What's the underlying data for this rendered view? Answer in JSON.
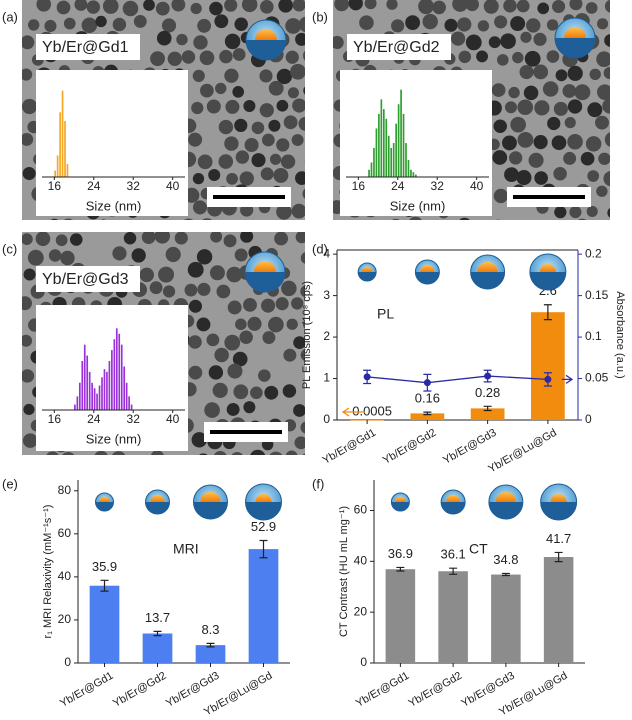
{
  "chart_data": [
    {
      "type": "histogram",
      "panel_label": "(a)",
      "sample_label": "Yb/Er@Gd1",
      "x_label": "Size (nm)",
      "color": "#f5a623",
      "bins": [
        16,
        16.5,
        17,
        17.5,
        18,
        18.5,
        19
      ],
      "counts": [
        3,
        10,
        30,
        40,
        26,
        6
      ],
      "xlim": [
        13.5,
        42.5
      ],
      "xticks": [
        16,
        24,
        32,
        40
      ],
      "ylim": [
        0,
        45
      ]
    },
    {
      "type": "histogram",
      "panel_label": "(b)",
      "sample_label": "Yb/Er@Gd2",
      "x_label": "Size (nm)",
      "color": "#2e9e2e",
      "bins": [
        18,
        18.5,
        19,
        19.5,
        20,
        20.5,
        21,
        21.5,
        22,
        22.5,
        23,
        23.5,
        24,
        24.5,
        25,
        25.5,
        26,
        26.5,
        27,
        27.5,
        28
      ],
      "counts": [
        3,
        6,
        12,
        20,
        26,
        32,
        28,
        24,
        17,
        12,
        14,
        22,
        30,
        36,
        26,
        14,
        7,
        3,
        2,
        1
      ],
      "xlim": [
        13.5,
        42.5
      ],
      "xticks": [
        16,
        24,
        32,
        40
      ],
      "ylim": [
        0,
        40
      ]
    },
    {
      "type": "histogram",
      "panel_label": "(c)",
      "sample_label": "Yb/Er@Gd3",
      "x_label": "Size (nm)",
      "color": "#9b30d9",
      "bins": [
        20,
        20.5,
        21,
        21.5,
        22,
        22.5,
        23,
        23.5,
        24,
        24.5,
        25,
        25.5,
        26,
        26.5,
        27,
        27.5,
        28,
        28.5,
        29,
        29.5,
        30,
        30.5,
        31,
        31.5,
        32
      ],
      "counts": [
        2,
        5,
        10,
        18,
        24,
        20,
        14,
        10,
        8,
        6,
        9,
        12,
        15,
        14,
        18,
        22,
        26,
        30,
        28,
        24,
        16,
        10,
        5,
        2
      ],
      "xlim": [
        13.5,
        42.5
      ],
      "xticks": [
        16,
        24,
        32,
        40
      ],
      "ylim": [
        0,
        36
      ]
    },
    {
      "type": "bar_line",
      "panel_label": "(d)",
      "annotation": "PL",
      "categories": [
        "Yb/Er@Gd1",
        "Yb/Er@Gd2",
        "Yb/Er@Gd3",
        "Yb/Er@Lu@Gd"
      ],
      "y_label": "PL Emission (10⁸ cps)",
      "y2_label": "Absorbance (a.u.)",
      "ylim": [
        0,
        4.1
      ],
      "yticks": [
        0,
        1,
        2,
        3,
        4
      ],
      "y2lim": [
        0,
        0.205
      ],
      "y2ticks": [
        0,
        0.05,
        0.1,
        0.15,
        0.2
      ],
      "series": [
        {
          "color": "#f28c0f",
          "values": [
            0.0005,
            0.16,
            0.28,
            2.6
          ],
          "errors": [
            0,
            0.03,
            0.05,
            0.18
          ]
        },
        {
          "color": "#2a2aa8",
          "axis": "y2",
          "values": [
            0.052,
            0.045,
            0.053,
            0.049
          ],
          "errors": [
            0.008,
            0.01,
            0.007,
            0.008
          ]
        }
      ]
    },
    {
      "type": "bar",
      "panel_label": "(e)",
      "annotation": "MRI",
      "categories": [
        "Yb/Er@Gd1",
        "Yb/Er@Gd2",
        "Yb/Er@Gd3",
        "Yb/Er@Lu@Gd"
      ],
      "y_label": "r₁ MRI Relaxivity (mM⁻¹s⁻¹)",
      "ylim": [
        0,
        85
      ],
      "yticks": [
        0,
        20,
        40,
        60,
        80
      ],
      "color": "#4d7ff0",
      "values": [
        35.9,
        13.7,
        8.3,
        52.9
      ],
      "errors": [
        2.5,
        1.0,
        0.8,
        4.0
      ]
    },
    {
      "type": "bar",
      "panel_label": "(f)",
      "annotation": "CT",
      "categories": [
        "Yb/Er@Gd1",
        "Yb/Er@Gd2",
        "Yb/Er@Gd3",
        "Yb/Er@Lu@Gd"
      ],
      "y_label": "CT Contrast (HU mL mg⁻¹)",
      "ylim": [
        0,
        72
      ],
      "yticks": [
        0,
        20,
        40,
        60
      ],
      "color": "#8c8c8c",
      "values": [
        36.9,
        36.1,
        34.8,
        41.7
      ],
      "errors": [
        0.7,
        1.2,
        0.4,
        1.8
      ]
    }
  ]
}
